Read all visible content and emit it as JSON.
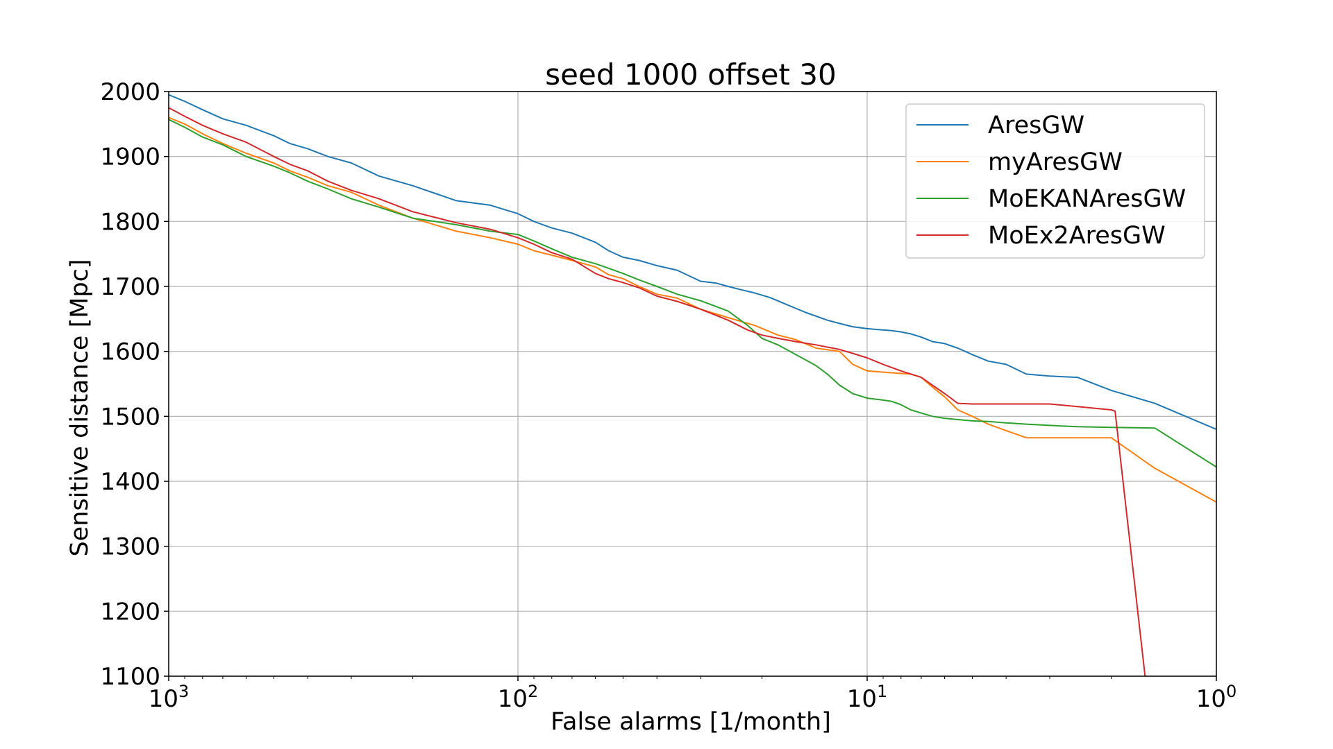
{
  "chart_data": {
    "type": "line",
    "title": "seed 1000 offset 30",
    "xlabel": "False alarms [1/month]",
    "ylabel": "Sensitive distance [Mpc]",
    "x_scale": "log",
    "x_inverted": true,
    "xlim": [
      1000,
      1
    ],
    "ylim": [
      1100,
      2000
    ],
    "x_ticks": [
      {
        "value": 1000,
        "base": "10",
        "exp": "3"
      },
      {
        "value": 100,
        "base": "10",
        "exp": "2"
      },
      {
        "value": 10,
        "base": "10",
        "exp": "1"
      },
      {
        "value": 1,
        "base": "10",
        "exp": "0"
      }
    ],
    "y_ticks": [
      1100,
      1200,
      1300,
      1400,
      1500,
      1600,
      1700,
      1800,
      1900,
      2000
    ],
    "grid": true,
    "legend_position": "top-right",
    "series": [
      {
        "name": "AresGW",
        "color": "#1f77b4",
        "x": [
          1000,
          900,
          800,
          700,
          600,
          500,
          450,
          400,
          350,
          300,
          250,
          200,
          170,
          150,
          120,
          100,
          90,
          80,
          70,
          60,
          55,
          50,
          45,
          40,
          35,
          30,
          27,
          25,
          23,
          21,
          19,
          17,
          15,
          13,
          12,
          11,
          10,
          9,
          8.5,
          8,
          7.5,
          7,
          6.5,
          6,
          5.5,
          5,
          4.5,
          4,
          3.5,
          3,
          2.5,
          2,
          1.5,
          1
        ],
        "y": [
          1995,
          1985,
          1972,
          1958,
          1948,
          1932,
          1920,
          1912,
          1900,
          1890,
          1870,
          1855,
          1842,
          1832,
          1825,
          1812,
          1800,
          1790,
          1782,
          1768,
          1755,
          1745,
          1740,
          1732,
          1725,
          1708,
          1705,
          1700,
          1695,
          1690,
          1683,
          1672,
          1660,
          1648,
          1643,
          1638,
          1635,
          1633,
          1632,
          1630,
          1627,
          1622,
          1615,
          1612,
          1605,
          1595,
          1585,
          1580,
          1565,
          1562,
          1560,
          1540,
          1520,
          1480
        ]
      },
      {
        "name": "myAresGW",
        "color": "#ff7f0e",
        "x": [
          1000,
          900,
          800,
          700,
          600,
          500,
          450,
          400,
          350,
          300,
          250,
          200,
          150,
          120,
          100,
          90,
          80,
          70,
          60,
          55,
          50,
          45,
          40,
          35,
          30,
          25,
          21,
          18,
          16,
          14,
          12,
          11,
          10,
          9,
          8,
          7.5,
          7,
          6.5,
          6,
          5.5,
          5,
          4.5,
          4,
          3.5,
          3,
          2.5,
          2,
          1.5,
          1
        ],
        "y": [
          1960,
          1950,
          1935,
          1920,
          1905,
          1890,
          1878,
          1868,
          1855,
          1845,
          1825,
          1805,
          1785,
          1775,
          1765,
          1755,
          1748,
          1740,
          1730,
          1718,
          1712,
          1700,
          1688,
          1682,
          1665,
          1652,
          1640,
          1625,
          1618,
          1605,
          1600,
          1580,
          1570,
          1568,
          1566,
          1565,
          1560,
          1545,
          1530,
          1510,
          1500,
          1488,
          1478,
          1467,
          1467,
          1467,
          1467,
          1420,
          1368
        ]
      },
      {
        "name": "MoEKANAresGW",
        "color": "#2ca02c",
        "x": [
          1000,
          900,
          800,
          700,
          600,
          500,
          450,
          400,
          350,
          300,
          250,
          200,
          150,
          120,
          100,
          90,
          80,
          70,
          60,
          55,
          50,
          45,
          40,
          35,
          30,
          25,
          22,
          20,
          18,
          16,
          14,
          13,
          12,
          11,
          10,
          9,
          8.5,
          8,
          7.5,
          7,
          6.5,
          6,
          5.5,
          5,
          4.5,
          4,
          3.5,
          3,
          2.5,
          2,
          1.5,
          1
        ],
        "y": [
          1957,
          1945,
          1930,
          1918,
          1900,
          1885,
          1875,
          1862,
          1850,
          1835,
          1822,
          1805,
          1795,
          1785,
          1780,
          1770,
          1758,
          1745,
          1735,
          1728,
          1720,
          1710,
          1700,
          1688,
          1678,
          1662,
          1640,
          1620,
          1610,
          1595,
          1578,
          1565,
          1548,
          1535,
          1528,
          1525,
          1523,
          1518,
          1510,
          1505,
          1500,
          1497,
          1495,
          1493,
          1492,
          1490,
          1488,
          1486,
          1484,
          1483,
          1482,
          1422
        ]
      },
      {
        "name": "MoEx2AresGW",
        "color": "#d62728",
        "x": [
          1000,
          900,
          800,
          700,
          600,
          500,
          450,
          400,
          350,
          300,
          250,
          200,
          150,
          120,
          100,
          90,
          80,
          70,
          60,
          55,
          50,
          45,
          40,
          35,
          30,
          25,
          22,
          20,
          18,
          16,
          14,
          12,
          11,
          10,
          9,
          8,
          7,
          6.5,
          6,
          5.5,
          5,
          4.5,
          4,
          3.5,
          3,
          2.5,
          2,
          1.95,
          1.6
        ],
        "y": [
          1975,
          1962,
          1948,
          1935,
          1922,
          1900,
          1888,
          1878,
          1862,
          1848,
          1835,
          1815,
          1798,
          1788,
          1775,
          1765,
          1752,
          1742,
          1720,
          1712,
          1706,
          1698,
          1685,
          1677,
          1665,
          1648,
          1633,
          1625,
          1620,
          1615,
          1610,
          1603,
          1597,
          1590,
          1580,
          1570,
          1560,
          1548,
          1535,
          1520,
          1519,
          1519,
          1519,
          1519,
          1519,
          1515,
          1510,
          1508,
          1100
        ]
      }
    ]
  }
}
